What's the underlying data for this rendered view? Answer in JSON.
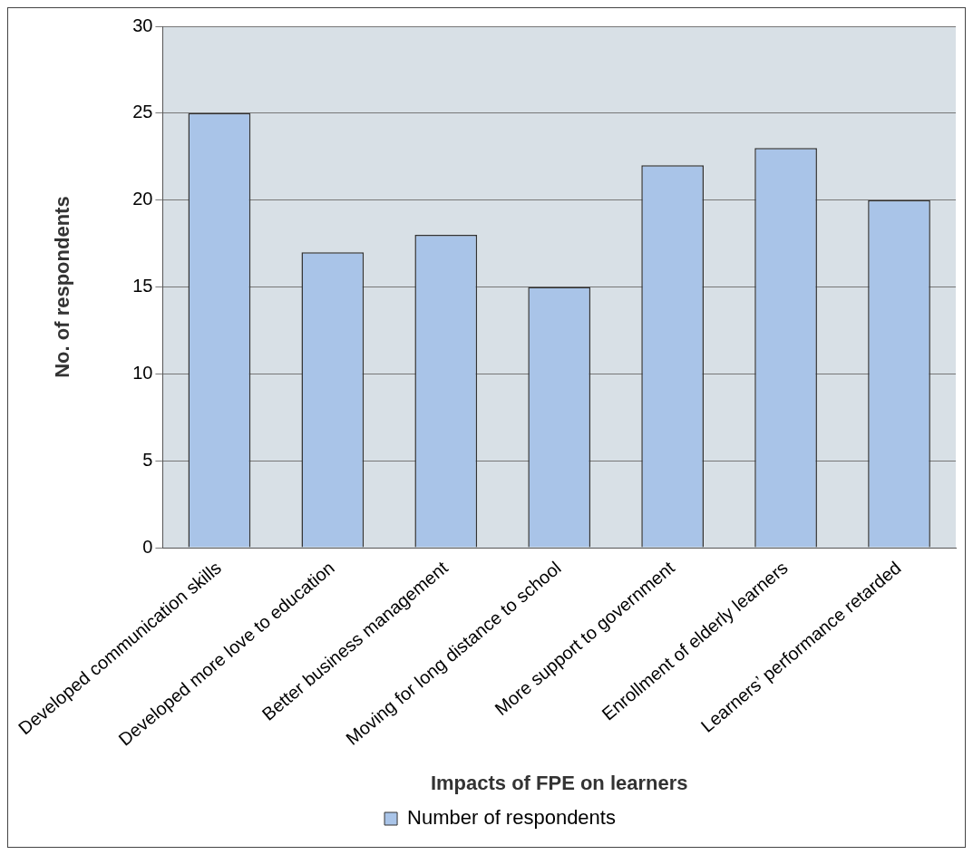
{
  "chart_data": {
    "type": "bar",
    "xlabel": "Impacts of FPE on learners",
    "ylabel": "No. of respondents",
    "categories": [
      "Developed communication skills",
      "Developed more love to education",
      "Better business management",
      "Moving for long distance to school",
      "More support to government",
      "Enrollment of elderly learners",
      "Learners’ performance retarded"
    ],
    "series": [
      {
        "name": "Number of respondents",
        "color": "#a9c4e8",
        "values": [
          25,
          17,
          18,
          15,
          22,
          23,
          20
        ]
      }
    ],
    "ylim": [
      0,
      30
    ],
    "yticks": [
      0,
      5,
      10,
      15,
      20,
      25,
      30
    ],
    "grid": "y",
    "legend": "bottom"
  }
}
